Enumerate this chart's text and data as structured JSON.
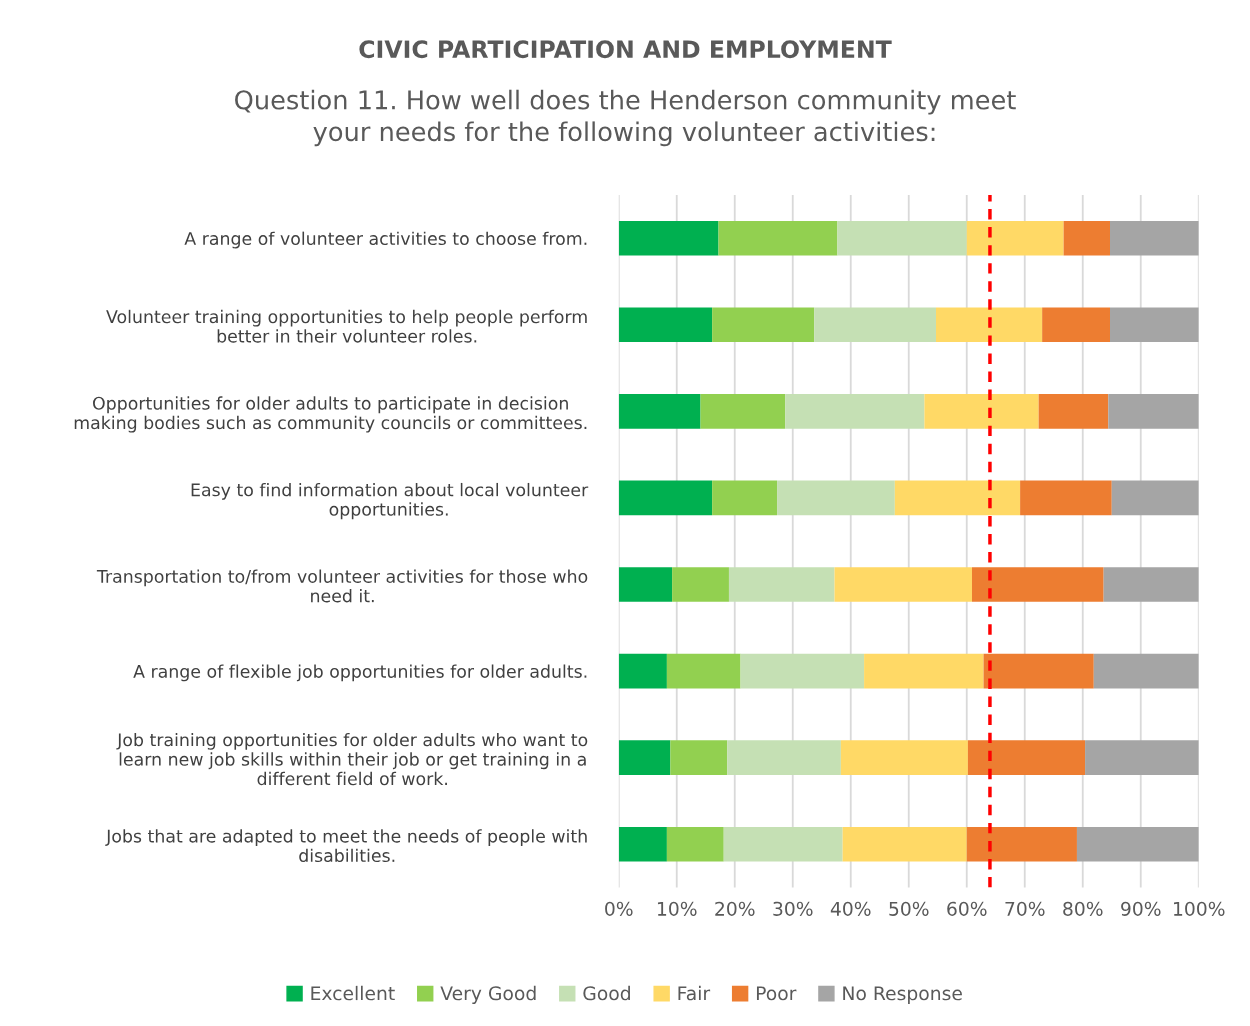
{
  "chart_data": {
    "type": "bar",
    "orientation": "horizontal",
    "stacked": true,
    "title": "CIVIC PARTICIPATION AND EMPLOYMENT",
    "subtitle": "Question 11. How well does the Henderson community meet\nyour needs for the following volunteer activities:",
    "categories": [
      "A range of volunteer activities to choose from.",
      "Volunteer training opportunities to help people perform\nbetter in their volunteer roles.",
      "Opportunities for older adults to participate in decision\nmaking bodies such as community councils or committees.",
      "Easy to find information about local volunteer\nopportunities.",
      "Transportation to/from volunteer activities for those who\nneed it.",
      "A range of flexible job opportunities for older adults.",
      "Job training opportunities for older adults who want to\nlearn new job skills within their job or get training in a\ndifferent field of work.",
      "Jobs that are adapted to meet the needs of people with\ndisabilities."
    ],
    "series": [
      {
        "name": "Excellent",
        "color": "#00b050",
        "values": [
          17.2,
          16.1,
          14.1,
          16.1,
          9.2,
          8.3,
          8.9,
          8.3
        ]
      },
      {
        "name": "Very Good",
        "color": "#92d050",
        "values": [
          20.5,
          17.6,
          14.6,
          11.2,
          9.8,
          12.7,
          9.8,
          9.8
        ]
      },
      {
        "name": "Good",
        "color": "#c5e0b4",
        "values": [
          22.3,
          21.0,
          24.0,
          20.3,
          18.2,
          21.3,
          19.6,
          20.5
        ]
      },
      {
        "name": "Fair",
        "color": "#ffd966",
        "values": [
          16.7,
          18.3,
          19.7,
          21.6,
          23.7,
          20.6,
          21.9,
          21.4
        ]
      },
      {
        "name": "Poor",
        "color": "#ed7d31",
        "values": [
          8.0,
          11.7,
          12.0,
          15.8,
          22.7,
          19.0,
          20.2,
          19.0
        ]
      },
      {
        "name": "No Response",
        "color": "#a5a5a5",
        "values": [
          15.3,
          15.3,
          15.6,
          15.0,
          16.4,
          18.1,
          19.6,
          21.0
        ]
      }
    ],
    "xlim": [
      0,
      100
    ],
    "xticks": [
      {
        "value": 0,
        "label": "0%"
      },
      {
        "value": 10,
        "label": "10%"
      },
      {
        "value": 20,
        "label": "20%"
      },
      {
        "value": 30,
        "label": "30%"
      },
      {
        "value": 40,
        "label": "40%"
      },
      {
        "value": 50,
        "label": "50%"
      },
      {
        "value": 60,
        "label": "60%"
      },
      {
        "value": 70,
        "label": "70%"
      },
      {
        "value": 80,
        "label": "80%"
      },
      {
        "value": 90,
        "label": "90%"
      },
      {
        "value": 100,
        "label": "100%"
      }
    ],
    "ref_lines": [
      {
        "axis": "x",
        "value": 64,
        "color": "#ff0000",
        "line_style": "dashed"
      }
    ],
    "grid": "x",
    "legend": "bottom"
  }
}
